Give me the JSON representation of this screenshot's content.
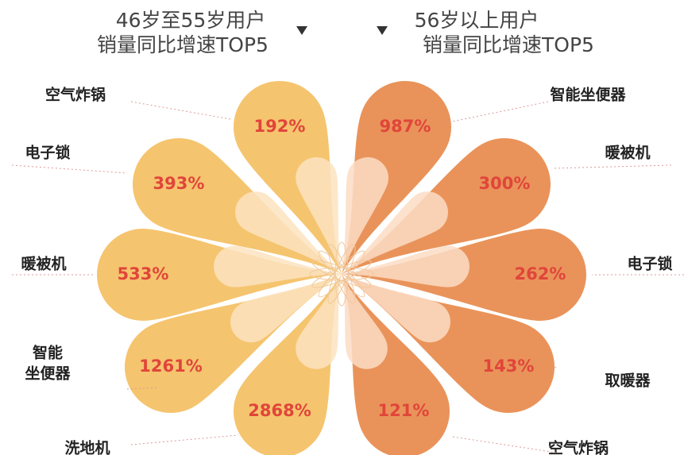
{
  "left": {
    "title_lines": [
      "46岁至55岁用户",
      "销量同比增速TOP5"
    ],
    "items": [
      {
        "label_lines": [
          "空气炸锅"
        ],
        "value": "192%"
      },
      {
        "label_lines": [
          "电子锁"
        ],
        "value": "393%"
      },
      {
        "label_lines": [
          "暖被机"
        ],
        "value": "533%"
      },
      {
        "label_lines": [
          "智能",
          "坐便器"
        ],
        "value": "1261%"
      },
      {
        "label_lines": [
          "洗地机"
        ],
        "value": "2868%"
      }
    ]
  },
  "right": {
    "title_lines": [
      "56岁以上用户",
      "销量同比增速TOP5"
    ],
    "items": [
      {
        "label_lines": [
          "智能坐便器"
        ],
        "value": "987%"
      },
      {
        "label_lines": [
          "暖被机"
        ],
        "value": "300%"
      },
      {
        "label_lines": [
          "电子锁"
        ],
        "value": "262%"
      },
      {
        "label_lines": [
          "取暖器"
        ],
        "value": "143%"
      },
      {
        "label_lines": [
          "空气炸锅"
        ],
        "value": "121%"
      }
    ]
  }
}
